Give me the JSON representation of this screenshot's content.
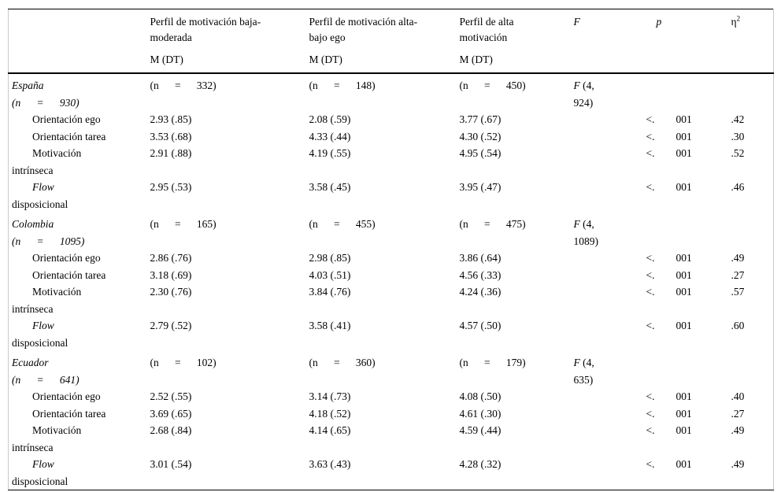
{
  "table": {
    "headers": {
      "m_dt": "M (DT)",
      "profile_low": {
        "line1": "Perfil de motivación baja-",
        "line2": "moderada"
      },
      "profile_high_low_ego": {
        "line1": "Perfil de motivación alta-",
        "line2": "bajo ego"
      },
      "profile_high": {
        "line1": "Perfil de alta",
        "line2": "motivación"
      },
      "f": "F",
      "p": "p",
      "eta_base": "η",
      "eta_sup": "2"
    },
    "sections": [
      {
        "country": {
          "name": "España",
          "n_line": "(n      =      930)"
        },
        "n_values": [
          "(n      =      332)",
          "(n      =      148)",
          "(n      =      450)"
        ],
        "f_stat": {
          "symbol": "F",
          "line1_rest": " (4,",
          "line2": "924)"
        },
        "rows": [
          {
            "label": [
              "Orientación ego"
            ],
            "italic_first": false,
            "values": [
              "2.93 (.85)",
              "2.08 (.59)",
              "3.77 (.67)"
            ],
            "p": [
              "<.",
              "001"
            ],
            "eta": ".42"
          },
          {
            "label": [
              "Orientación tarea"
            ],
            "italic_first": false,
            "values": [
              "3.53 (.68)",
              "4.33 (.44)",
              "4.30 (.52)"
            ],
            "p": [
              "<.",
              "001"
            ],
            "eta": ".30"
          },
          {
            "label": [
              "Motivación",
              "intrínseca"
            ],
            "italic_first": false,
            "values": [
              "2.91 (.88)",
              "4.19 (.55)",
              "4.95 (.54)"
            ],
            "p": [
              "<.",
              "001"
            ],
            "eta": ".52"
          },
          {
            "label": [
              "Flow",
              "disposicional"
            ],
            "italic_first": true,
            "values": [
              "2.95 (.53)",
              "3.58 (.45)",
              "3.95 (.47)"
            ],
            "p": [
              "<.",
              "001"
            ],
            "eta": ".46"
          }
        ]
      },
      {
        "country": {
          "name": "Colombia",
          "n_line": "(n      =      1095)"
        },
        "n_values": [
          "(n      =      165)",
          "(n      =      455)",
          "(n      =      475)"
        ],
        "f_stat": {
          "symbol": "F",
          "line1_rest": " (4,",
          "line2": "1089)"
        },
        "rows": [
          {
            "label": [
              "Orientación ego"
            ],
            "italic_first": false,
            "values": [
              "2.86 (.76)",
              "2.98 (.85)",
              "3.86 (.64)"
            ],
            "p": [
              "<.",
              "001"
            ],
            "eta": ".49"
          },
          {
            "label": [
              "Orientación tarea"
            ],
            "italic_first": false,
            "values": [
              "3.18 (.69)",
              "4.03 (.51)",
              "4.56 (.33)"
            ],
            "p": [
              "<.",
              "001"
            ],
            "eta": ".27"
          },
          {
            "label": [
              "Motivación",
              "intrínseca"
            ],
            "italic_first": false,
            "values": [
              "2.30 (.76)",
              "3.84 (.76)",
              "4.24 (.36)"
            ],
            "p": [
              "<.",
              "001"
            ],
            "eta": ".57"
          },
          {
            "label": [
              "Flow",
              "disposicional"
            ],
            "italic_first": true,
            "values": [
              "2.79 (.52)",
              "3.58 (.41)",
              "4.57 (.50)"
            ],
            "p": [
              "<.",
              "001"
            ],
            "eta": ".60"
          }
        ]
      },
      {
        "country": {
          "name": "Ecuador",
          "n_line": "(n      =      641)"
        },
        "n_values": [
          "(n      =      102)",
          "(n      =      360)",
          "(n      =      179)"
        ],
        "f_stat": {
          "symbol": "F",
          "line1_rest": " (4,",
          "line2": "635)"
        },
        "rows": [
          {
            "label": [
              "Orientación ego"
            ],
            "italic_first": false,
            "values": [
              "2.52 (.55)",
              "3.14 (.73)",
              "4.08 (.50)"
            ],
            "p": [
              "<.",
              "001"
            ],
            "eta": ".40"
          },
          {
            "label": [
              "Orientación tarea"
            ],
            "italic_first": false,
            "values": [
              "3.69 (.65)",
              "4.18 (.52)",
              "4.61 (.30)"
            ],
            "p": [
              "<.",
              "001"
            ],
            "eta": ".27"
          },
          {
            "label": [
              "Motivación",
              "intrínseca"
            ],
            "italic_first": false,
            "values": [
              "2.68 (.84)",
              "4.14 (.65)",
              "4.59 (.44)"
            ],
            "p": [
              "<.",
              "001"
            ],
            "eta": ".49"
          },
          {
            "label": [
              "Flow",
              "disposicional"
            ],
            "italic_first": true,
            "values": [
              "3.01 (.54)",
              "3.63 (.43)",
              "4.28 (.32)"
            ],
            "p": [
              "<.",
              "001"
            ],
            "eta": ".49"
          }
        ]
      }
    ]
  }
}
